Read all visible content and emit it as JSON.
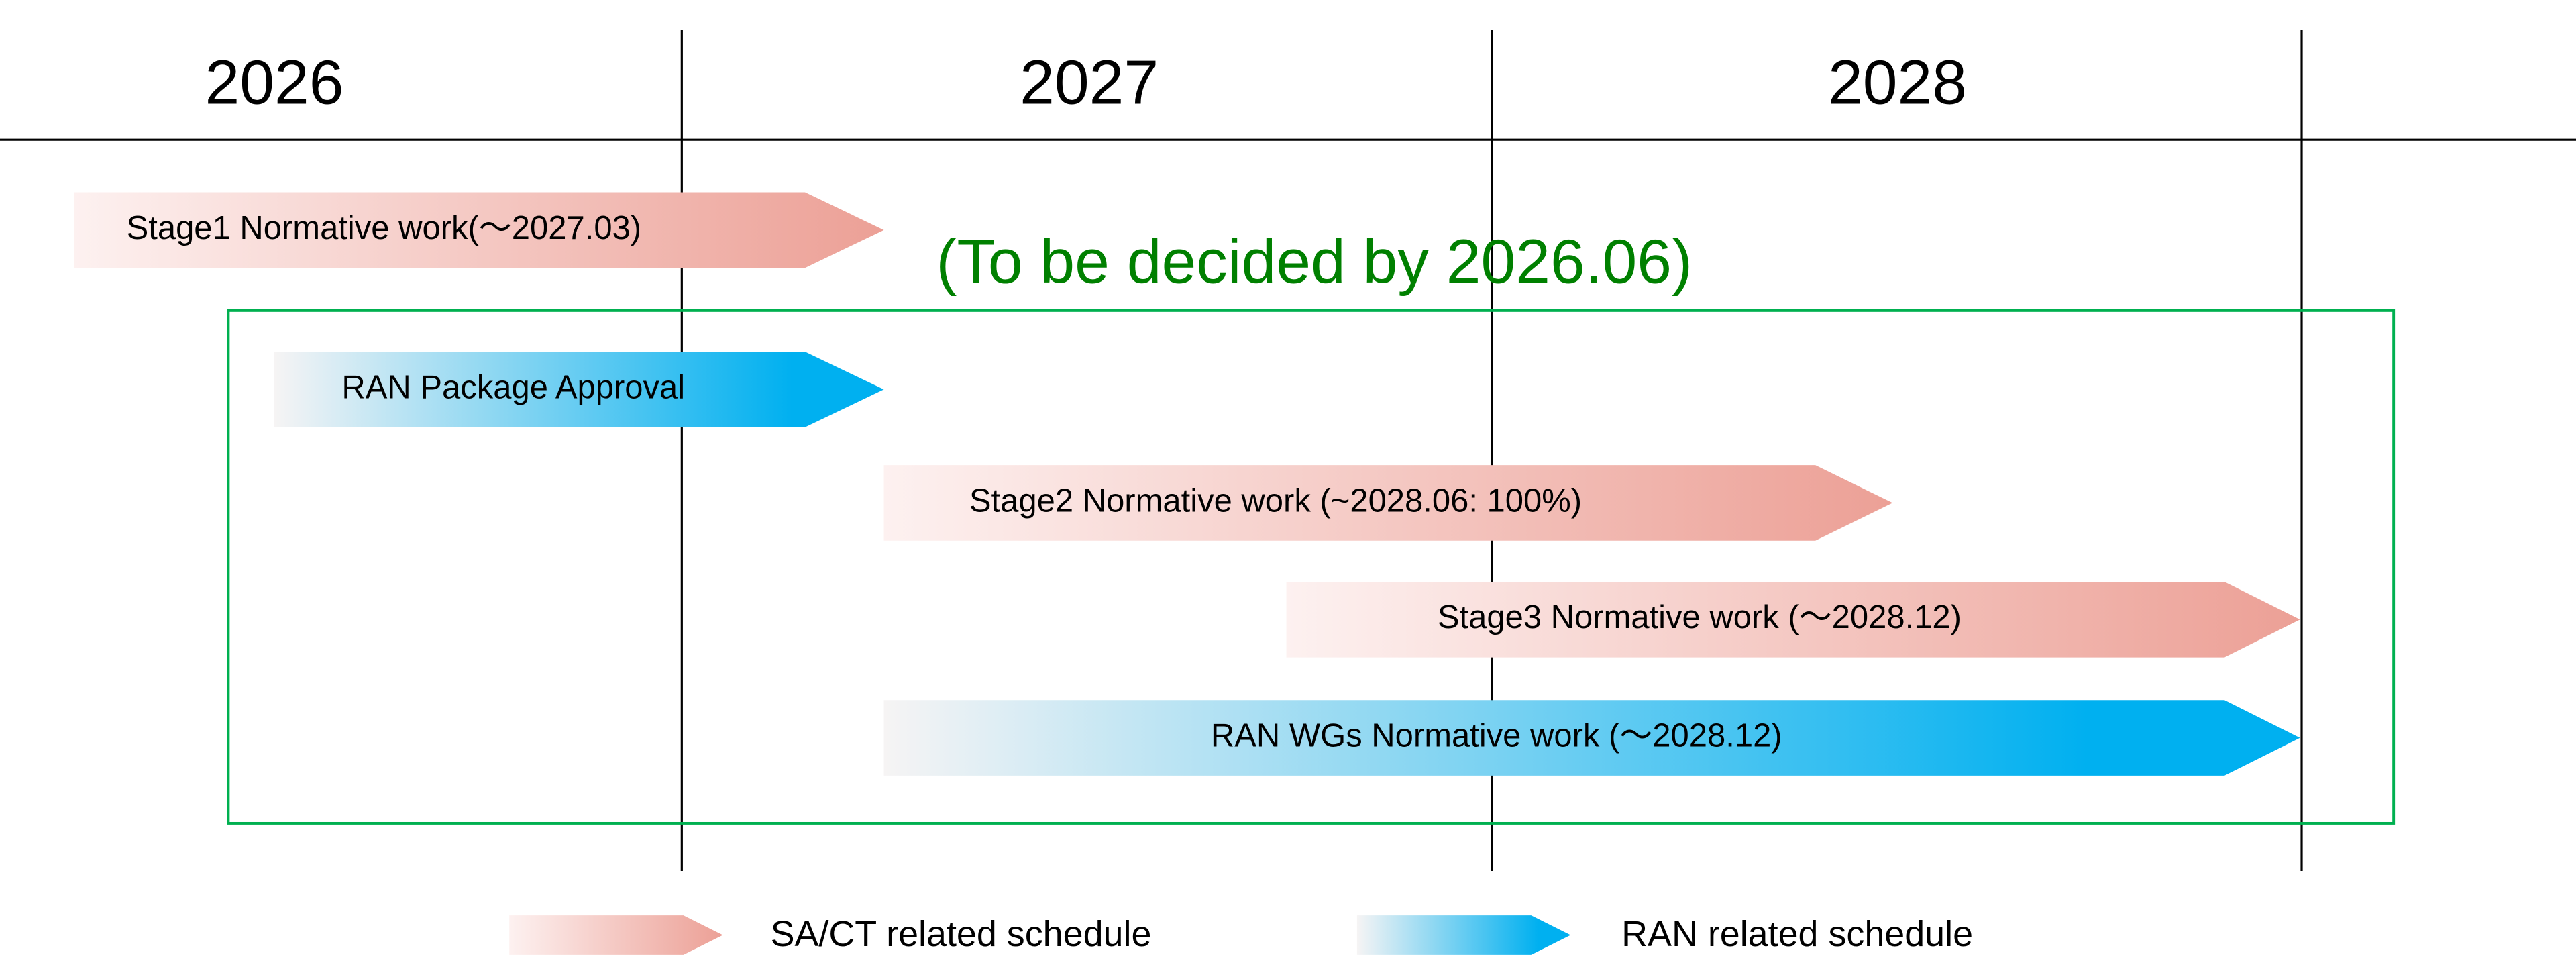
{
  "years": [
    "2026",
    "2027",
    "2028"
  ],
  "note": "(To be decided by 2026.06)",
  "bars": [
    {
      "label": "Stage1 Normative work(～2027.03)"
    },
    {
      "label": "RAN Package Approval"
    },
    {
      "label": "Stage2 Normative work (~2028.06: 100%)"
    },
    {
      "label": "Stage3 Normative work (～2028.12)"
    },
    {
      "label": "RAN WGs Normative work (～2028.12)"
    }
  ],
  "legend": [
    {
      "label": "SA/CT related schedule"
    },
    {
      "label": "RAN related schedule"
    }
  ]
}
